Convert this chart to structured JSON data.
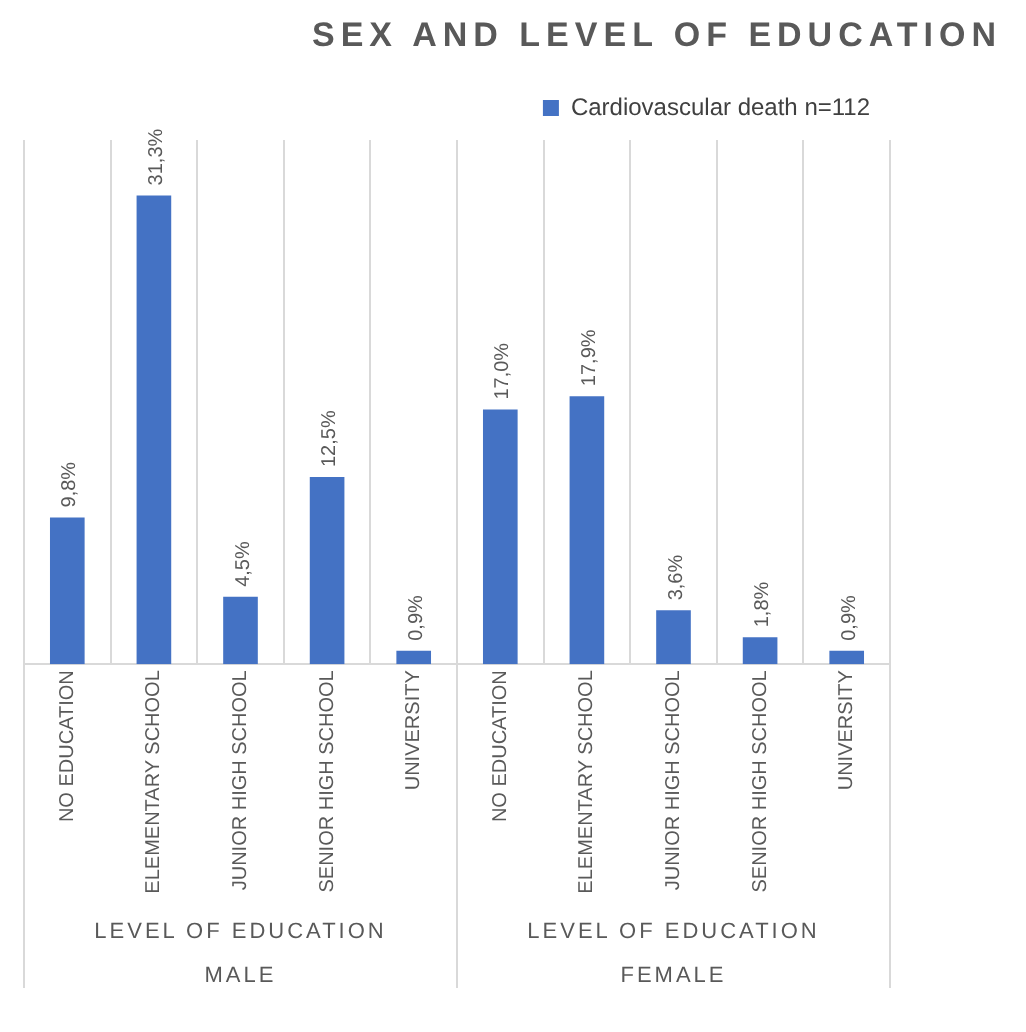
{
  "chart_data": {
    "type": "bar",
    "title": "SEX AND LEVEL OF EDUCATION",
    "categories": [
      "NO EDUCATION",
      "ELEMENTARY SCHOOL",
      "JUNIOR HIGH SCHOOL",
      "SENIOR HIGH SCHOOL",
      "UNIVERSITY",
      "NO EDUCATION",
      "ELEMENTARY SCHOOL",
      "JUNIOR HIGH SCHOOL",
      "SENIOR HIGH SCHOOL",
      "UNIVERSITY"
    ],
    "series": [
      {
        "name": "Cardiovascular death n=112",
        "color": "#4472c4",
        "values": [
          9.8,
          31.3,
          4.5,
          12.5,
          0.9,
          17.0,
          17.9,
          3.6,
          1.8,
          0.9
        ],
        "value_labels": [
          "9,8%",
          "31,3%",
          "4,5%",
          "12,5%",
          "0,9%",
          "17,0%",
          "17,9%",
          "3,6%",
          "1,8%",
          "0,9%"
        ]
      }
    ],
    "annotations": [
      "LEVEL OF EDUCATION",
      "LEVEL OF EDUCATION",
      "MALE",
      "FEMALE"
    ],
    "grid": "x",
    "legend": "top right"
  }
}
